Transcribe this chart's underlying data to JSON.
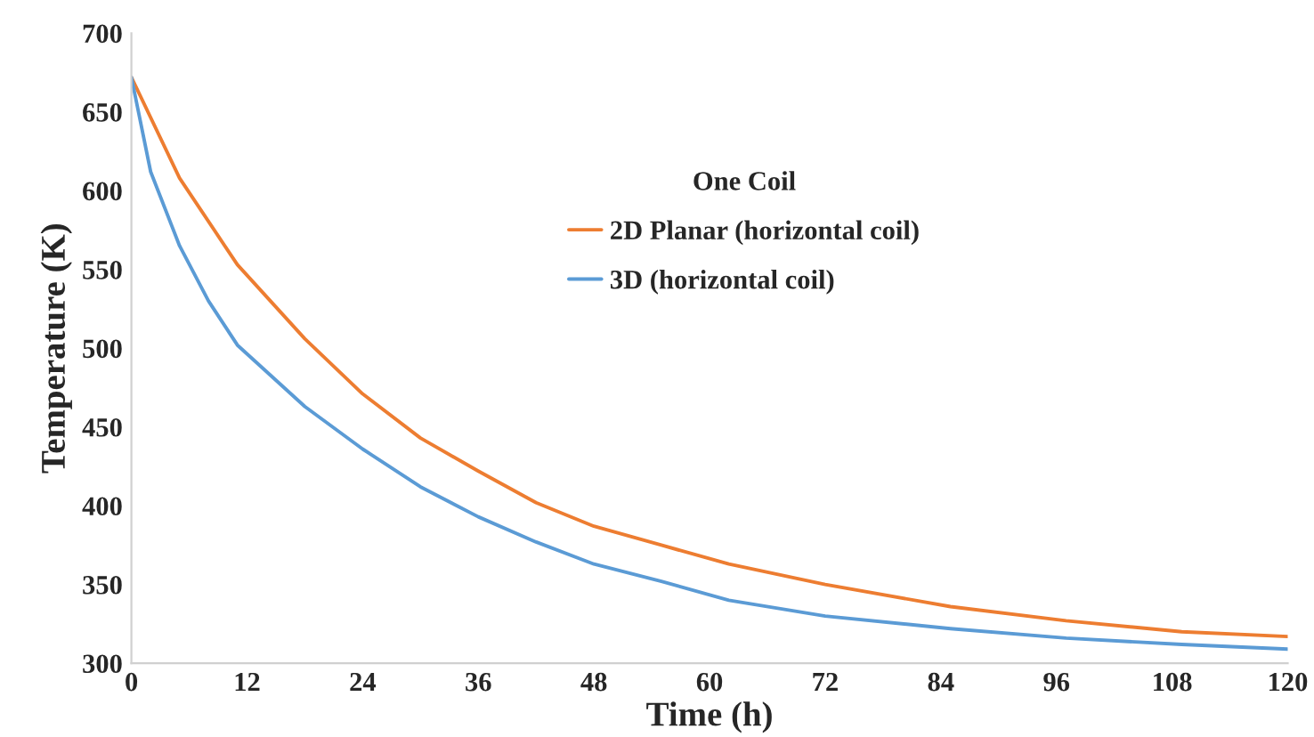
{
  "chart_data": {
    "type": "line",
    "xlabel": "Time (h)",
    "ylabel": "Temperature (K)",
    "legend_title": "One Coil",
    "xlim": [
      0,
      120
    ],
    "xticks": [
      0,
      12,
      24,
      36,
      48,
      60,
      72,
      84,
      96,
      108,
      120
    ],
    "ylim": [
      300,
      700
    ],
    "yticks": [
      300,
      350,
      400,
      450,
      500,
      550,
      600,
      650,
      700
    ],
    "grid": false,
    "legend": "top",
    "marker": "none",
    "line_style": "solid",
    "series": [
      {
        "name": "2D Planar (horizontal coil)",
        "color": "#ed7d31",
        "x": [
          0,
          5,
          11,
          18,
          24,
          30,
          36,
          42,
          48,
          55,
          62,
          72,
          85,
          97,
          109,
          120
        ],
        "values": [
          672,
          608,
          553,
          506,
          471,
          443,
          422,
          402,
          387,
          375,
          363,
          350,
          336,
          327,
          320,
          317
        ]
      },
      {
        "name": "3D (horizontal coil)",
        "color": "#5b9bd5",
        "x": [
          0,
          2,
          5,
          8,
          11,
          18,
          24,
          30,
          36,
          42,
          48,
          55,
          62,
          72,
          85,
          97,
          109,
          120
        ],
        "values": [
          672,
          612,
          565,
          530,
          502,
          463,
          436,
          412,
          393,
          377,
          363,
          352,
          340,
          330,
          322,
          316,
          312,
          309
        ]
      }
    ]
  }
}
